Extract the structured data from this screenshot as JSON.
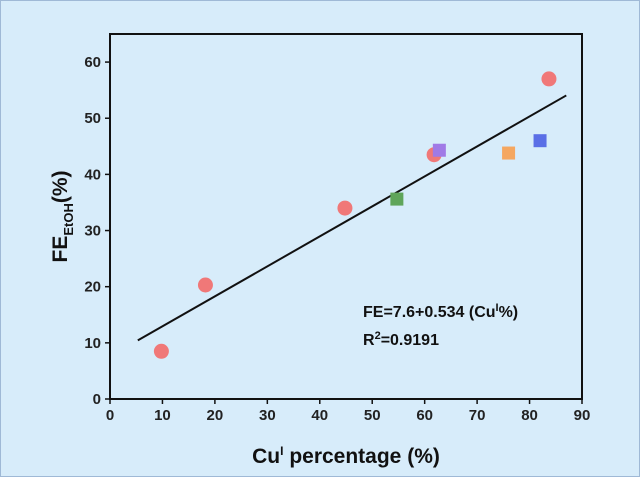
{
  "chart_data": {
    "type": "scatter",
    "xlabel": {
      "main": "Cu",
      "sup": "I",
      "rest": " percentage (%)"
    },
    "ylabel": {
      "main": "FE",
      "sub": "EtOH",
      "rest": "(%)"
    },
    "xlim": [
      0,
      90
    ],
    "ylim": [
      0,
      65
    ],
    "xticks": [
      0,
      10,
      20,
      30,
      40,
      50,
      60,
      70,
      80,
      90
    ],
    "yticks": [
      0,
      10,
      20,
      30,
      40,
      50,
      60
    ],
    "series": [
      {
        "name": "circles",
        "marker": "circle",
        "color": "#f07878",
        "points": [
          {
            "x": 9.8,
            "y": 8.5
          },
          {
            "x": 18.2,
            "y": 20.3
          },
          {
            "x": 44.8,
            "y": 34.0
          },
          {
            "x": 61.8,
            "y": 43.5
          },
          {
            "x": 83.7,
            "y": 57.0
          }
        ]
      },
      {
        "name": "squares",
        "marker": "square",
        "points": [
          {
            "x": 54.7,
            "y": 35.6,
            "color": "#5fa55a"
          },
          {
            "x": 62.8,
            "y": 44.3,
            "color": "#a07ae6"
          },
          {
            "x": 76.0,
            "y": 43.8,
            "color": "#f5a760"
          },
          {
            "x": 82.0,
            "y": 46.0,
            "color": "#5a6fe6"
          }
        ]
      }
    ],
    "fit": {
      "intercept": 7.6,
      "slope": 0.534,
      "x_range": [
        5.3,
        87.0
      ],
      "color": "#111111"
    },
    "annotations": {
      "equation": {
        "pre": "FE=7.6+0.534  (Cu",
        "sup": "I",
        "post": "%)"
      },
      "r2": {
        "pre": "R",
        "sup": "2",
        "post": "=0.9191"
      }
    }
  }
}
